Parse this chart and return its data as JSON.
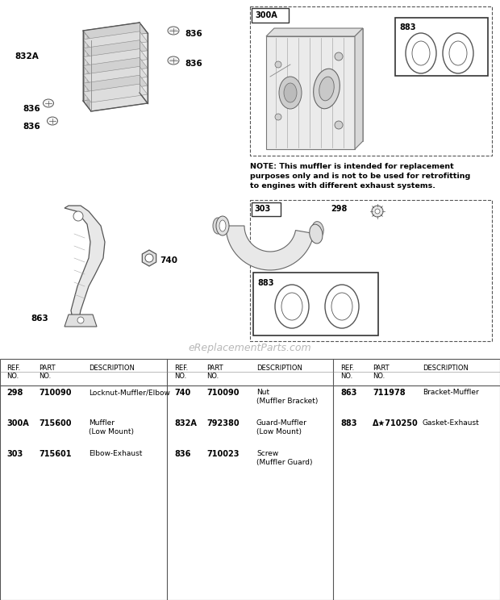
{
  "bg_color": "#ffffff",
  "watermark": "eReplacementParts.com",
  "note_text": "NOTE: This muffler is intended for replacement\npurposes only and is not to be used for retrofitting\nto engines with different exhaust systems.",
  "col1_data": [
    [
      "298",
      "710090",
      "Locknut-Muffler/Elbow"
    ],
    [
      "300A",
      "715600",
      "Muffler\n(Low Mount)"
    ],
    [
      "303",
      "715601",
      "Elbow-Exhaust"
    ]
  ],
  "col2_data": [
    [
      "740",
      "710090",
      "Nut\n(Muffler Bracket)"
    ],
    [
      "832A",
      "792380",
      "Guard-Muffler\n(Low Mount)"
    ],
    [
      "836",
      "710023",
      "Screw\n(Muffler Guard)"
    ]
  ],
  "col3_data": [
    [
      "863",
      "711978",
      "Bracket-Muffler"
    ],
    [
      "883",
      "Δ★710250",
      "Gasket-Exhaust"
    ]
  ]
}
